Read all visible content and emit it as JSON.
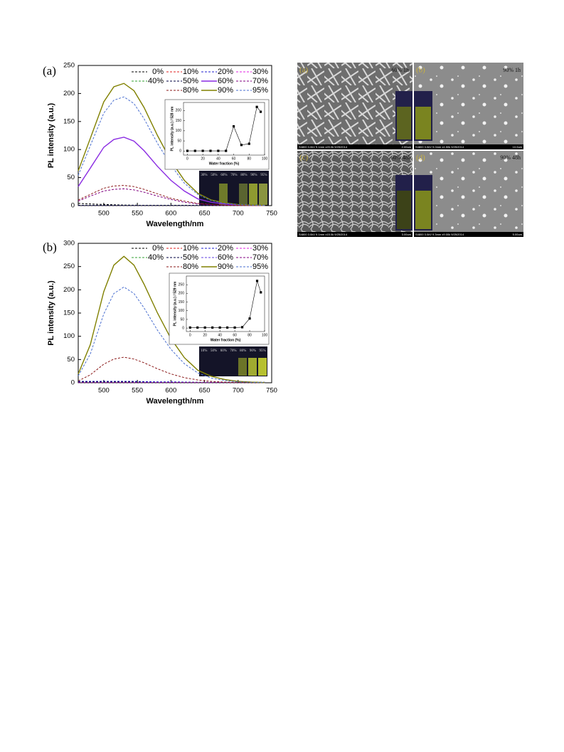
{
  "chart_data": [
    {
      "type": "line",
      "panel_label": "(a)",
      "x_label": "Wavelength/nm",
      "y_label": "PL intensity (a.u.)",
      "xlim": [
        462,
        750
      ],
      "xticks": [
        500,
        550,
        600,
        650,
        700,
        750
      ],
      "ylim": [
        0,
        250
      ],
      "yticks": [
        0,
        50,
        100,
        150,
        200,
        250
      ],
      "x": [
        462,
        480,
        500,
        515,
        530,
        545,
        560,
        580,
        600,
        620,
        640,
        660,
        680,
        700,
        720,
        740
      ],
      "vial_labels": [
        "30%",
        "50%",
        "60%",
        "70%",
        "80%",
        "90%",
        "95%"
      ],
      "series": [
        {
          "name": "0%",
          "color": "#000000",
          "style": "dashed",
          "values": [
            4,
            3,
            2,
            1.5,
            1,
            0.8,
            0.6,
            0.4,
            0.3,
            0.2,
            0.1,
            0.1,
            0,
            0,
            0,
            0
          ]
        },
        {
          "name": "10%",
          "color": "#e02020",
          "style": "dashed",
          "values": [
            0.5,
            0.5,
            0.5,
            0.5,
            0.5,
            0.5,
            0.5,
            0.5,
            0.5,
            0.5,
            0.5,
            0.5,
            0.5,
            0.5,
            0.5,
            0.5
          ]
        },
        {
          "name": "20%",
          "color": "#2020d0",
          "style": "dashed",
          "values": [
            0.5,
            0.5,
            0.5,
            0.5,
            0.5,
            0.5,
            0.5,
            0.5,
            0.5,
            0.5,
            0.5,
            0.5,
            0.5,
            0.5,
            0.5,
            0.5
          ]
        },
        {
          "name": "30%",
          "color": "#e020e0",
          "style": "dashed",
          "values": [
            0.5,
            0.5,
            0.5,
            0.5,
            0.5,
            0.5,
            0.5,
            0.5,
            0.5,
            0.5,
            0.5,
            0.5,
            0.5,
            0.5,
            0.5,
            0.5
          ]
        },
        {
          "name": "40%",
          "color": "#30a030",
          "style": "dashed",
          "values": [
            0.5,
            0.5,
            0.5,
            0.5,
            0.5,
            0.5,
            0.5,
            0.5,
            0.5,
            0.5,
            0.5,
            0.5,
            0.5,
            0.5,
            0.5,
            0.5
          ]
        },
        {
          "name": "50%",
          "color": "#000040",
          "style": "dashed",
          "values": [
            0.5,
            0.5,
            0.5,
            0.5,
            0.5,
            0.5,
            0.5,
            0.5,
            0.5,
            0.5,
            0.5,
            0.5,
            0.5,
            0.5,
            0.5,
            0.5
          ]
        },
        {
          "name": "60%",
          "color": "#8a2be2",
          "style": "solid",
          "values": [
            34,
            67,
            104,
            118,
            122,
            115,
            98,
            70,
            45,
            26,
            12,
            6,
            3,
            1,
            0.6,
            0.3
          ]
        },
        {
          "name": "70%",
          "color": "#800080",
          "style": "dashed",
          "values": [
            8,
            17,
            26,
            29,
            30,
            28,
            24,
            17,
            11,
            6,
            3,
            1.5,
            0.7,
            0.3,
            0.2,
            0.1
          ]
        },
        {
          "name": "80%",
          "color": "#8b1a1a",
          "style": "dashed",
          "values": [
            10,
            20,
            31,
            35,
            36,
            34,
            29,
            21,
            13,
            8,
            4,
            2,
            1,
            0.4,
            0.2,
            0.1
          ]
        },
        {
          "name": "90%",
          "color": "#808000",
          "style": "solid",
          "values": [
            62,
            120,
            185,
            212,
            218,
            205,
            175,
            125,
            80,
            45,
            22,
            10,
            5,
            2,
            1,
            0.5
          ]
        },
        {
          "name": "95%",
          "color": "#4a6fd0",
          "style": "dashed",
          "values": [
            54,
            107,
            165,
            188,
            194,
            182,
            155,
            111,
            72,
            40,
            20,
            9,
            4,
            2,
            1,
            0.4
          ]
        }
      ]
    },
    {
      "type": "line",
      "markers": true,
      "x_label": "Water fraction (%)",
      "y_label": "PL intensity (a.u.) / 528 nm",
      "xlim": [
        -5,
        100
      ],
      "xticks": [
        0,
        20,
        40,
        60,
        80,
        100
      ],
      "ylim": [
        -20,
        240
      ],
      "yticks": [
        0,
        50,
        100,
        150,
        200
      ],
      "x": [
        0,
        10,
        20,
        30,
        40,
        50,
        60,
        70,
        80,
        90,
        95
      ],
      "series": [
        {
          "name": null,
          "color": "#000000",
          "style": "solid",
          "values": [
            1,
            1,
            1,
            1,
            1,
            1,
            122,
            30,
            36,
            218,
            194
          ]
        }
      ]
    },
    {
      "type": "line",
      "panel_label": "(b)",
      "x_label": "Wavelength/nm",
      "y_label": "PL intensity (a.u.)",
      "xlim": [
        462,
        750
      ],
      "xticks": [
        500,
        550,
        600,
        650,
        700,
        750
      ],
      "ylim": [
        0,
        300
      ],
      "yticks": [
        0,
        50,
        100,
        150,
        200,
        250,
        300
      ],
      "x": [
        462,
        480,
        500,
        515,
        530,
        545,
        560,
        580,
        600,
        620,
        640,
        660,
        680,
        700,
        720,
        740
      ],
      "vial_labels": [
        "10%",
        "50%",
        "60%",
        "70%",
        "80%",
        "90%",
        "95%"
      ],
      "series": [
        {
          "name": "0%",
          "color": "#000000",
          "style": "dashed",
          "values": [
            2,
            2,
            2,
            2,
            2,
            2,
            1.5,
            1.5,
            1,
            1,
            1,
            1,
            1,
            1,
            1,
            1
          ]
        },
        {
          "name": "10%",
          "color": "#e02020",
          "style": "dashed",
          "values": [
            0.5,
            0.5,
            0.5,
            0.5,
            0.5,
            0.5,
            0.5,
            0.5,
            0.5,
            0.5,
            0.5,
            0.5,
            0.5,
            0.5,
            0.5,
            0.5
          ]
        },
        {
          "name": "20%",
          "color": "#2020d0",
          "style": "dashed",
          "values": [
            3,
            3,
            3,
            3,
            3,
            3,
            2.5,
            2,
            2,
            1.5,
            1,
            1,
            1,
            1,
            1,
            1
          ]
        },
        {
          "name": "30%",
          "color": "#e020e0",
          "style": "dashed",
          "values": [
            0.5,
            0.5,
            0.5,
            0.5,
            0.5,
            0.5,
            0.5,
            0.5,
            0.5,
            0.5,
            0.5,
            0.5,
            0.5,
            0.5,
            0.5,
            0.5
          ]
        },
        {
          "name": "40%",
          "color": "#30a030",
          "style": "dashed",
          "values": [
            0.5,
            0.5,
            0.5,
            0.5,
            0.5,
            0.5,
            0.5,
            0.5,
            0.5,
            0.5,
            0.5,
            0.5,
            0.5,
            0.5,
            0.5,
            0.5
          ]
        },
        {
          "name": "50%",
          "color": "#000040",
          "style": "dashed",
          "values": [
            0.5,
            0.5,
            0.5,
            0.5,
            0.5,
            0.5,
            0.5,
            0.5,
            0.5,
            0.5,
            0.5,
            0.5,
            0.5,
            0.5,
            0.5,
            0.5
          ]
        },
        {
          "name": "60%",
          "color": "#6040e0",
          "style": "dashed",
          "values": [
            0.5,
            0.5,
            0.5,
            0.5,
            0.5,
            0.5,
            0.5,
            0.5,
            0.5,
            0.5,
            0.5,
            0.5,
            0.5,
            0.5,
            0.5,
            0.5
          ]
        },
        {
          "name": "70%",
          "color": "#800080",
          "style": "dashed",
          "values": [
            0.5,
            0.5,
            0.5,
            0.5,
            0.5,
            0.5,
            0.5,
            0.5,
            0.5,
            0.5,
            0.5,
            0.5,
            0.5,
            0.5,
            0.5,
            0.5
          ]
        },
        {
          "name": "80%",
          "color": "#8b1a1a",
          "style": "dashed",
          "values": [
            4,
            17,
            40,
            51,
            55,
            51,
            43,
            30,
            19,
            11,
            6,
            3,
            1.4,
            0.6,
            0.3,
            0.1
          ]
        },
        {
          "name": "90%",
          "color": "#808000",
          "style": "solid",
          "values": [
            19,
            82,
            196,
            253,
            272,
            253,
            212,
            150,
            95,
            54,
            27,
            14,
            7,
            3,
            1.4,
            0.5
          ]
        },
        {
          "name": "95%",
          "color": "#4a6fd0",
          "style": "dashed",
          "values": [
            15,
            62,
            148,
            192,
            206,
            192,
            161,
            113,
            72,
            41,
            21,
            10,
            5,
            2,
            1,
            0.4
          ]
        }
      ]
    },
    {
      "type": "line",
      "markers": true,
      "x_label": "Water fraction (%)",
      "y_label": "PL intensity (a.u.) / 529 nm",
      "xlim": [
        -5,
        100
      ],
      "xticks": [
        0,
        20,
        40,
        60,
        80,
        100
      ],
      "ylim": [
        -20,
        300
      ],
      "yticks": [
        0,
        50,
        100,
        150,
        200,
        250
      ],
      "x": [
        0,
        10,
        20,
        30,
        40,
        50,
        60,
        70,
        80,
        90,
        95
      ],
      "series": [
        {
          "name": null,
          "color": "#000000",
          "style": "solid",
          "values": [
            3,
            3,
            3,
            3,
            3,
            3,
            3,
            5,
            55,
            272,
            206
          ]
        }
      ]
    }
  ],
  "sem_figure": {
    "panels": [
      {
        "label": "(a)",
        "condition": "60% 1h",
        "info": "S4800 3.0kV 9.1mm x20.0k 9/25/2014",
        "scale": "2.00um"
      },
      {
        "label": "(b)",
        "condition": "90% 1h",
        "info": "S4800 3.0kV 9.0mm x4.50k 9/25/2014",
        "scale": "10.0um"
      },
      {
        "label": "(c)",
        "condition": "60% 48h",
        "info": "S4800 3.0kV 9.1mm x15.0k 9/25/2014",
        "scale": "3.00um"
      },
      {
        "label": "(d)",
        "condition": "90% 48h",
        "info": "S4800 3.0kV 9.3mm x9.00k 9/25/2014",
        "scale": "5.00um"
      }
    ]
  }
}
